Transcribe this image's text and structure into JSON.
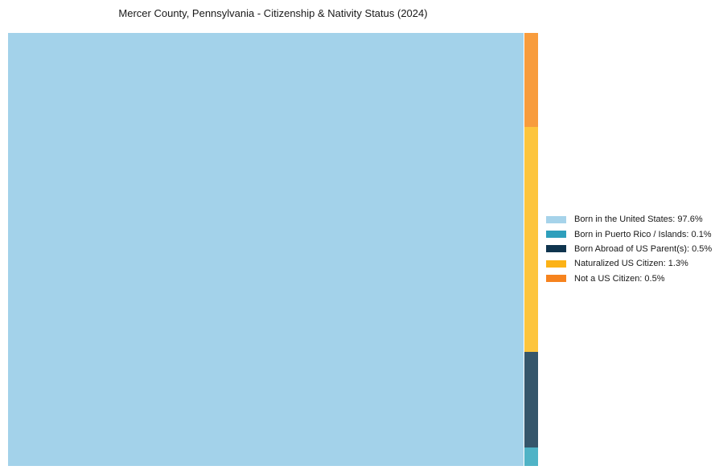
{
  "figure": {
    "title": "Mercer County, Pennsylvania - Citizenship & Nativity Status (2024)",
    "background_color": "#ffffff",
    "text_color": "#191919"
  },
  "chart_data": {
    "type": "treemap",
    "title": "Mercer County, Pennsylvania - Citizenship & Nativity Status (2024)",
    "unit": "percent of population",
    "slices": [
      {
        "label": "Born in the United States",
        "value_pct": 97.6,
        "legend_label": "Born in the United States: 97.6%",
        "legend_color": "#A6D3EA",
        "tile_color": "#A3D2EA"
      },
      {
        "label": "Born in Puerto Rico / Islands",
        "value_pct": 0.1,
        "legend_label": "Born in Puerto Rico / Islands: 0.1%",
        "legend_color": "#2E9FBC",
        "tile_color": "#4FB3C6"
      },
      {
        "label": "Born Abroad of US Parent(s)",
        "value_pct": 0.5,
        "legend_label": "Born Abroad of US Parent(s): 0.5%",
        "legend_color": "#0F344E",
        "tile_color": "#35566B"
      },
      {
        "label": "Naturalized US Citizen",
        "value_pct": 1.3,
        "legend_label": "Naturalized US Citizen: 1.3%",
        "legend_color": "#FCB216",
        "tile_color": "#FDC53D"
      },
      {
        "label": "Not a US Citizen",
        "value_pct": 0.5,
        "legend_label": "Not a US Citizen: 0.5%",
        "legend_color": "#F6831E",
        "tile_color": "#F89C3D"
      }
    ],
    "legend": {
      "position": "right-center",
      "marker": "rect",
      "entries": [
        "Born in the United States: 97.6%",
        "Born in Puerto Rico / Islands: 0.1%",
        "Born Abroad of US Parent(s): 0.5%",
        "Naturalized US Citizen: 1.3%",
        "Not a US Citizen: 0.5%"
      ]
    },
    "layout": {
      "main_tile_width_frac": 0.973,
      "minor_strip_width_frac": 0.026,
      "strip_segments_top_to_bottom": [
        "Not a US Citizen",
        "Naturalized US Citizen",
        "Born Abroad of US Parent(s)",
        "Born in Puerto Rico / Islands"
      ],
      "strip_segment_height_fracs": [
        0.217,
        0.52,
        0.221,
        0.042
      ],
      "grid": false
    }
  }
}
